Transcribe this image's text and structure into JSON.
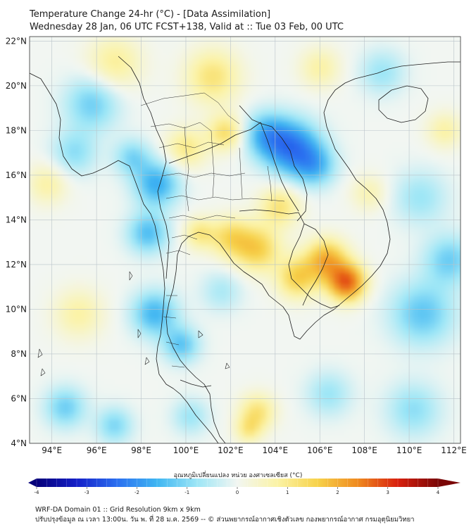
{
  "title": {
    "line1": "Temperature Change 24-hr (°C) - [Data Assimilation]",
    "line2": "Wednesday 28 Jan, 06 UTC FCST+138, Valid at :: Tue 03 Feb, 00 UTC"
  },
  "map": {
    "lon_range": [
      93,
      112.3
    ],
    "lat_range": [
      4,
      22.2
    ],
    "lon_ticks": [
      {
        "value": 94,
        "label": "94°E"
      },
      {
        "value": 96,
        "label": "96°E"
      },
      {
        "value": 98,
        "label": "98°E"
      },
      {
        "value": 100,
        "label": "100°E"
      },
      {
        "value": 102,
        "label": "102°E"
      },
      {
        "value": 104,
        "label": "104°E"
      },
      {
        "value": 106,
        "label": "106°E"
      },
      {
        "value": 108,
        "label": "108°E"
      },
      {
        "value": 110,
        "label": "110°E"
      },
      {
        "value": 112,
        "label": "112°E"
      }
    ],
    "lat_ticks": [
      {
        "value": 4,
        "label": "4°N"
      },
      {
        "value": 6,
        "label": "6°N"
      },
      {
        "value": 8,
        "label": "8°N"
      },
      {
        "value": 10,
        "label": "10°N"
      },
      {
        "value": 12,
        "label": "12°N"
      },
      {
        "value": 14,
        "label": "14°N"
      },
      {
        "value": 16,
        "label": "16°N"
      },
      {
        "value": 18,
        "label": "18°N"
      },
      {
        "value": 20,
        "label": "20°N"
      },
      {
        "value": 22,
        "label": "22°N"
      }
    ],
    "anomalies": [
      {
        "lon": 104.8,
        "lat": 17.2,
        "value": -1.8,
        "spread": 1.2
      },
      {
        "lon": 103.6,
        "lat": 17.8,
        "value": -1.2,
        "spread": 1.0
      },
      {
        "lon": 105.8,
        "lat": 16.4,
        "value": -1.0,
        "spread": 0.9
      },
      {
        "lon": 98.7,
        "lat": 15.6,
        "value": -1.3,
        "spread": 1.0
      },
      {
        "lon": 98.3,
        "lat": 13.4,
        "value": -1.1,
        "spread": 0.9
      },
      {
        "lon": 98.6,
        "lat": 9.8,
        "value": -1.2,
        "spread": 1.0
      },
      {
        "lon": 99.8,
        "lat": 8.4,
        "value": -1.0,
        "spread": 0.8
      },
      {
        "lon": 97.6,
        "lat": 16.8,
        "value": -0.8,
        "spread": 0.8
      },
      {
        "lon": 95.8,
        "lat": 19.2,
        "value": -0.9,
        "spread": 1.2
      },
      {
        "lon": 95.0,
        "lat": 17.0,
        "value": -0.7,
        "spread": 1.0
      },
      {
        "lon": 94.6,
        "lat": 5.6,
        "value": -0.9,
        "spread": 0.9
      },
      {
        "lon": 96.8,
        "lat": 4.8,
        "value": -0.8,
        "spread": 0.8
      },
      {
        "lon": 100.2,
        "lat": 5.2,
        "value": -0.6,
        "spread": 0.8
      },
      {
        "lon": 110.6,
        "lat": 9.8,
        "value": -1.0,
        "spread": 1.4
      },
      {
        "lon": 111.8,
        "lat": 12.2,
        "value": -0.9,
        "spread": 1.1
      },
      {
        "lon": 110.5,
        "lat": 15.0,
        "value": -0.6,
        "spread": 1.2
      },
      {
        "lon": 110.2,
        "lat": 5.5,
        "value": -0.7,
        "spread": 1.2
      },
      {
        "lon": 106.4,
        "lat": 6.2,
        "value": -0.6,
        "spread": 1.0
      },
      {
        "lon": 108.8,
        "lat": 20.6,
        "value": -0.6,
        "spread": 1.0
      },
      {
        "lon": 101.6,
        "lat": 10.8,
        "value": -0.5,
        "spread": 0.9
      },
      {
        "lon": 107.2,
        "lat": 11.2,
        "value": 2.4,
        "spread": 0.8
      },
      {
        "lon": 106.3,
        "lat": 12.2,
        "value": 1.6,
        "spread": 0.9
      },
      {
        "lon": 105.0,
        "lat": 11.4,
        "value": 1.2,
        "spread": 0.9
      },
      {
        "lon": 103.2,
        "lat": 12.7,
        "value": 1.2,
        "spread": 1.0
      },
      {
        "lon": 102.0,
        "lat": 13.2,
        "value": 1.0,
        "spread": 0.9
      },
      {
        "lon": 100.6,
        "lat": 13.4,
        "value": 0.8,
        "spread": 0.7
      },
      {
        "lon": 104.2,
        "lat": 14.6,
        "value": 0.9,
        "spread": 0.9
      },
      {
        "lon": 101.8,
        "lat": 17.9,
        "value": 1.0,
        "spread": 0.8
      },
      {
        "lon": 100.0,
        "lat": 17.2,
        "value": 0.8,
        "spread": 0.9
      },
      {
        "lon": 101.2,
        "lat": 20.4,
        "value": 0.9,
        "spread": 1.2
      },
      {
        "lon": 96.8,
        "lat": 21.0,
        "value": 0.7,
        "spread": 1.2
      },
      {
        "lon": 93.8,
        "lat": 15.6,
        "value": 0.6,
        "spread": 0.9
      },
      {
        "lon": 95.2,
        "lat": 9.8,
        "value": 0.6,
        "spread": 1.1
      },
      {
        "lon": 103.2,
        "lat": 5.4,
        "value": 0.9,
        "spread": 0.8
      },
      {
        "lon": 102.8,
        "lat": 4.6,
        "value": 0.7,
        "spread": 0.6
      },
      {
        "lon": 106.0,
        "lat": 20.8,
        "value": 0.6,
        "spread": 0.9
      },
      {
        "lon": 111.6,
        "lat": 18.0,
        "value": 0.6,
        "spread": 0.8
      },
      {
        "lon": 108.2,
        "lat": 15.2,
        "value": 0.5,
        "spread": 0.8
      }
    ]
  },
  "colorbar": {
    "title": "อุณหภูมิเปลี่ยนแปลง หน่วย องศาเซลเซียส (°C)",
    "range": [
      -4,
      4
    ],
    "ticks": [
      "-4",
      "-3",
      "-2",
      "-1",
      "0",
      "1",
      "2",
      "3",
      "4"
    ]
  },
  "footer": {
    "line1": "WRF-DA Domain 01 :: Grid Resolution 9km x 9km",
    "line2": "ปรับปรุงข้อมูล ณ เวลา 13:00น. วัน พ. ที่ 28 ม.ค. 2569 -- © ส่วนพยากรณ์อากาศเชิงตัวเลข กองพยากรณ์อากาศ กรมอุตุนิยมวิทยา"
  }
}
